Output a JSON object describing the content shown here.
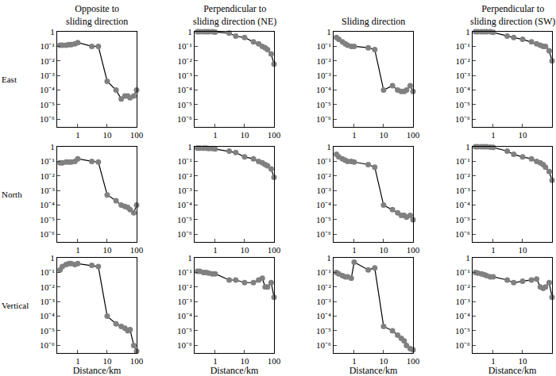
{
  "chart_data": [
    {
      "type": "line",
      "title": "Opposite to\nsliding direction",
      "ylabel": "East",
      "x": [
        0.25,
        0.3,
        0.4,
        0.5,
        0.6,
        0.8,
        1,
        3,
        5,
        10,
        20,
        30,
        40,
        50,
        60,
        80,
        100
      ],
      "values": [
        0.12,
        0.12,
        0.12,
        0.13,
        0.13,
        0.15,
        0.18,
        0.1,
        0.1,
        0.0004,
        0.0001,
        2.5e-05,
        4e-05,
        4e-05,
        3e-05,
        4e-05,
        0.0001
      ],
      "color": "#808080",
      "marker": "circle",
      "log": true,
      "xlim": [
        0.2,
        100
      ],
      "ylim": [
        3e-07,
        1
      ],
      "xticks": [
        1,
        10,
        100
      ],
      "yticks": [
        {
          "value": 1e-06,
          "label": "10⁻⁶"
        },
        {
          "value": 1e-05,
          "label": "10⁻⁵"
        },
        {
          "value": 0.0001,
          "label": "10⁻⁴"
        },
        {
          "value": 0.001,
          "label": "10⁻³"
        },
        {
          "value": 0.01,
          "label": "10⁻²"
        },
        {
          "value": 0.1,
          "label": "10⁻¹"
        },
        1
      ]
    },
    {
      "type": "line",
      "title": "Perpendicular to\nsliding direction (NE)",
      "x": [
        0.25,
        0.3,
        0.4,
        0.5,
        0.6,
        0.8,
        1,
        3,
        5,
        10,
        20,
        30,
        40,
        50,
        60,
        80,
        100
      ],
      "values": [
        1,
        1,
        1,
        1,
        1,
        1,
        0.95,
        0.8,
        0.5,
        0.4,
        0.2,
        0.15,
        0.1,
        0.08,
        0.06,
        0.03,
        0.006
      ],
      "color": "#808080",
      "marker": "circle",
      "log": true,
      "xlim": [
        0.2,
        100
      ],
      "ylim": [
        3e-07,
        1
      ],
      "xticks": [
        1,
        10,
        100
      ],
      "yticks": [
        {
          "value": 1e-06,
          "label": "10⁻⁶"
        },
        {
          "value": 1e-05,
          "label": "10⁻⁵"
        },
        {
          "value": 0.0001,
          "label": "10⁻⁴"
        },
        {
          "value": 0.001,
          "label": "10⁻³"
        },
        {
          "value": 0.01,
          "label": "10⁻²"
        },
        {
          "value": 0.1,
          "label": "10⁻¹"
        },
        1
      ]
    },
    {
      "type": "line",
      "title": "Sliding direction",
      "x": [
        0.25,
        0.3,
        0.4,
        0.5,
        0.6,
        0.8,
        1,
        3,
        5,
        10,
        20,
        30,
        40,
        50,
        60,
        80,
        100
      ],
      "values": [
        0.4,
        0.3,
        0.2,
        0.15,
        0.12,
        0.1,
        0.1,
        0.08,
        0.06,
        0.0001,
        0.0002,
        0.0001,
        8e-05,
        8e-05,
        0.0001,
        0.0002,
        8e-05
      ],
      "color": "#808080",
      "marker": "circle",
      "log": true,
      "xlim": [
        0.2,
        100
      ],
      "ylim": [
        3e-07,
        1
      ],
      "xticks": [
        1,
        10,
        100
      ],
      "yticks": [
        {
          "value": 1e-06,
          "label": "10⁻⁶"
        },
        {
          "value": 1e-05,
          "label": "10⁻⁵"
        },
        {
          "value": 0.0001,
          "label": "10⁻⁴"
        },
        {
          "value": 0.001,
          "label": "10⁻³"
        },
        {
          "value": 0.01,
          "label": "10⁻²"
        },
        {
          "value": 0.1,
          "label": "10⁻¹"
        },
        1
      ]
    },
    {
      "type": "line",
      "title": "Perpendicular to\nsliding direction (SW)",
      "x": [
        0.25,
        0.3,
        0.4,
        0.5,
        0.6,
        0.8,
        1,
        3,
        5,
        10,
        20,
        30,
        40,
        50,
        60,
        80,
        100
      ],
      "values": [
        1,
        1,
        1,
        1,
        1,
        1,
        0.9,
        0.5,
        0.4,
        0.3,
        0.2,
        0.15,
        0.12,
        0.1,
        0.1,
        0.05,
        0.01
      ],
      "color": "#808080",
      "marker": "circle",
      "log": true,
      "xlim": [
        0.2,
        100
      ],
      "ylim": [
        3e-07,
        1
      ],
      "xticks": [
        1,
        10,
        100
      ],
      "yticks": [
        {
          "value": 1e-06,
          "label": "10⁻⁶"
        },
        {
          "value": 1e-05,
          "label": "10⁻⁵"
        },
        {
          "value": 0.0001,
          "label": "10⁻⁴"
        },
        {
          "value": 0.001,
          "label": "10⁻³"
        },
        {
          "value": 0.01,
          "label": "10⁻²"
        },
        {
          "value": 0.1,
          "label": "10⁻¹"
        },
        1
      ]
    },
    {
      "type": "line",
      "ylabel": "North",
      "x": [
        0.25,
        0.3,
        0.4,
        0.5,
        0.6,
        0.8,
        1,
        3,
        5,
        10,
        20,
        30,
        40,
        50,
        60,
        80,
        100
      ],
      "values": [
        0.08,
        0.08,
        0.09,
        0.09,
        0.09,
        0.1,
        0.15,
        0.1,
        0.09,
        0.0005,
        0.0002,
        0.0001,
        8e-05,
        7e-05,
        5e-05,
        3e-05,
        0.0001
      ],
      "color": "#808080",
      "marker": "circle",
      "log": true,
      "xlim": [
        0.2,
        100
      ],
      "ylim": [
        3e-07,
        1
      ],
      "xticks": [
        1,
        10,
        100
      ],
      "yticks": [
        {
          "value": 1e-06,
          "label": "10⁻⁶"
        },
        {
          "value": 1e-05,
          "label": "10⁻⁵"
        },
        {
          "value": 0.0001,
          "label": "10⁻⁴"
        },
        {
          "value": 0.001,
          "label": "10⁻³"
        },
        {
          "value": 0.01,
          "label": "10⁻²"
        },
        {
          "value": 0.1,
          "label": "10⁻¹"
        },
        1
      ]
    },
    {
      "type": "line",
      "x": [
        0.25,
        0.3,
        0.4,
        0.5,
        0.6,
        0.8,
        1,
        3,
        5,
        10,
        20,
        30,
        40,
        50,
        60,
        80,
        100
      ],
      "values": [
        0.8,
        0.8,
        0.8,
        0.8,
        0.75,
        0.75,
        0.7,
        0.5,
        0.4,
        0.2,
        0.15,
        0.1,
        0.08,
        0.06,
        0.05,
        0.03,
        0.008
      ],
      "color": "#808080",
      "marker": "circle",
      "log": true,
      "xlim": [
        0.2,
        100
      ],
      "ylim": [
        3e-07,
        1
      ],
      "xticks": [
        1,
        10,
        100
      ],
      "yticks": [
        {
          "value": 1e-06,
          "label": "10⁻⁶"
        },
        {
          "value": 1e-05,
          "label": "10⁻⁵"
        },
        {
          "value": 0.0001,
          "label": "10⁻⁴"
        },
        {
          "value": 0.001,
          "label": "10⁻³"
        },
        {
          "value": 0.01,
          "label": "10⁻²"
        },
        {
          "value": 0.1,
          "label": "10⁻¹"
        },
        1
      ]
    },
    {
      "type": "line",
      "x": [
        0.25,
        0.3,
        0.4,
        0.5,
        0.6,
        0.8,
        1,
        3,
        5,
        10,
        20,
        30,
        40,
        50,
        60,
        80,
        100
      ],
      "values": [
        0.3,
        0.2,
        0.15,
        0.12,
        0.1,
        0.1,
        0.09,
        0.06,
        0.04,
        0.0001,
        5e-05,
        3e-05,
        2e-05,
        2e-05,
        1.5e-05,
        2e-05,
        1e-05
      ],
      "color": "#808080",
      "marker": "circle",
      "log": true,
      "xlim": [
        0.2,
        100
      ],
      "ylim": [
        3e-07,
        1
      ],
      "xticks": [
        1,
        10,
        100
      ],
      "yticks": [
        {
          "value": 1e-06,
          "label": "10⁻⁶"
        },
        {
          "value": 1e-05,
          "label": "10⁻⁵"
        },
        {
          "value": 0.0001,
          "label": "10⁻⁴"
        },
        {
          "value": 0.001,
          "label": "10⁻³"
        },
        {
          "value": 0.01,
          "label": "10⁻²"
        },
        {
          "value": 0.1,
          "label": "10⁻¹"
        },
        1
      ]
    },
    {
      "type": "line",
      "x": [
        0.25,
        0.3,
        0.4,
        0.5,
        0.6,
        0.8,
        1,
        3,
        5,
        10,
        20,
        30,
        40,
        50,
        60,
        80,
        100
      ],
      "values": [
        1,
        1,
        1,
        1,
        1,
        0.95,
        0.9,
        0.5,
        0.3,
        0.2,
        0.15,
        0.1,
        0.08,
        0.06,
        0.04,
        0.02,
        0.005
      ],
      "color": "#808080",
      "marker": "circle",
      "log": true,
      "xlim": [
        0.2,
        100
      ],
      "ylim": [
        3e-07,
        1
      ],
      "xticks": [
        1,
        10,
        100
      ],
      "yticks": [
        {
          "value": 1e-06,
          "label": "10⁻⁶"
        },
        {
          "value": 1e-05,
          "label": "10⁻⁵"
        },
        {
          "value": 0.0001,
          "label": "10⁻⁴"
        },
        {
          "value": 0.001,
          "label": "10⁻³"
        },
        {
          "value": 0.01,
          "label": "10⁻²"
        },
        {
          "value": 0.1,
          "label": "10⁻¹"
        },
        1
      ]
    },
    {
      "type": "line",
      "ylabel": "Vertical",
      "xlabel": "Distance/km",
      "x": [
        0.25,
        0.3,
        0.4,
        0.5,
        0.6,
        0.8,
        1,
        3,
        5,
        10,
        20,
        30,
        40,
        50,
        60,
        80,
        100
      ],
      "values": [
        0.15,
        0.25,
        0.35,
        0.4,
        0.4,
        0.35,
        0.4,
        0.3,
        0.25,
        0.0001,
        3e-05,
        2e-05,
        1.5e-05,
        1e-05,
        1.2e-05,
        1e-06,
        4e-07
      ],
      "color": "#808080",
      "marker": "circle",
      "log": true,
      "xlim": [
        0.2,
        100
      ],
      "ylim": [
        3e-07,
        1
      ],
      "xticks": [
        1,
        10,
        100
      ],
      "yticks": [
        {
          "value": 1e-06,
          "label": "10⁻⁶"
        },
        {
          "value": 1e-05,
          "label": "10⁻⁵"
        },
        {
          "value": 0.0001,
          "label": "10⁻⁴"
        },
        {
          "value": 0.001,
          "label": "10⁻³"
        },
        {
          "value": 0.01,
          "label": "10⁻²"
        },
        {
          "value": 0.1,
          "label": "10⁻¹"
        },
        1
      ]
    },
    {
      "type": "line",
      "xlabel": "Distance/km",
      "x": [
        0.25,
        0.3,
        0.4,
        0.5,
        0.6,
        0.8,
        1,
        3,
        5,
        10,
        20,
        30,
        40,
        50,
        60,
        80,
        100
      ],
      "values": [
        0.12,
        0.12,
        0.1,
        0.1,
        0.09,
        0.08,
        0.08,
        0.03,
        0.03,
        0.02,
        0.02,
        0.03,
        0.04,
        0.01,
        0.01,
        0.02,
        0.002
      ],
      "color": "#808080",
      "marker": "circle",
      "log": true,
      "xlim": [
        0.2,
        100
      ],
      "ylim": [
        3e-07,
        1
      ],
      "xticks": [
        1,
        10,
        100
      ],
      "yticks": [
        {
          "value": 1e-06,
          "label": "10⁻⁶"
        },
        {
          "value": 1e-05,
          "label": "10⁻⁵"
        },
        {
          "value": 0.0001,
          "label": "10⁻⁴"
        },
        {
          "value": 0.001,
          "label": "10⁻³"
        },
        {
          "value": 0.01,
          "label": "10⁻²"
        },
        {
          "value": 0.1,
          "label": "10⁻¹"
        },
        1
      ]
    },
    {
      "type": "line",
      "xlabel": "Distance/km",
      "x": [
        0.25,
        0.3,
        0.4,
        0.5,
        0.6,
        0.8,
        1,
        3,
        5,
        10,
        20,
        30,
        40,
        50,
        60,
        80,
        100
      ],
      "values": [
        0.1,
        0.08,
        0.06,
        0.05,
        0.05,
        0.04,
        0.5,
        0.15,
        0.2,
        2e-05,
        1e-05,
        5e-06,
        3e-06,
        2e-06,
        1e-06,
        6e-07,
        5e-07
      ],
      "color": "#808080",
      "marker": "circle",
      "log": true,
      "xlim": [
        0.2,
        100
      ],
      "ylim": [
        3e-07,
        1
      ],
      "xticks": [
        1,
        10,
        100
      ],
      "yticks": [
        {
          "value": 1e-06,
          "label": "10⁻⁶"
        },
        {
          "value": 1e-05,
          "label": "10⁻⁵"
        },
        {
          "value": 0.0001,
          "label": "10⁻⁴"
        },
        {
          "value": 0.001,
          "label": "10⁻³"
        },
        {
          "value": 0.01,
          "label": "10⁻²"
        },
        {
          "value": 0.1,
          "label": "10⁻¹"
        },
        1
      ]
    },
    {
      "type": "line",
      "xlabel": "Distance/km",
      "x": [
        0.25,
        0.3,
        0.4,
        0.5,
        0.6,
        0.8,
        1,
        3,
        5,
        10,
        20,
        30,
        40,
        50,
        60,
        80,
        100
      ],
      "values": [
        0.1,
        0.09,
        0.08,
        0.07,
        0.06,
        0.05,
        0.05,
        0.03,
        0.02,
        0.025,
        0.03,
        0.035,
        0.01,
        0.008,
        0.01,
        0.02,
        0.002
      ],
      "color": "#808080",
      "marker": "circle",
      "log": true,
      "xlim": [
        0.2,
        100
      ],
      "ylim": [
        3e-07,
        1
      ],
      "xticks": [
        1,
        10,
        100
      ],
      "yticks": [
        {
          "value": 1e-06,
          "label": "10⁻⁶"
        },
        {
          "value": 1e-05,
          "label": "10⁻⁵"
        },
        {
          "value": 0.0001,
          "label": "10⁻⁴"
        },
        {
          "value": 0.001,
          "label": "10⁻³"
        },
        {
          "value": 0.01,
          "label": "10⁻²"
        },
        {
          "value": 0.1,
          "label": "10⁻¹"
        },
        1
      ]
    }
  ]
}
